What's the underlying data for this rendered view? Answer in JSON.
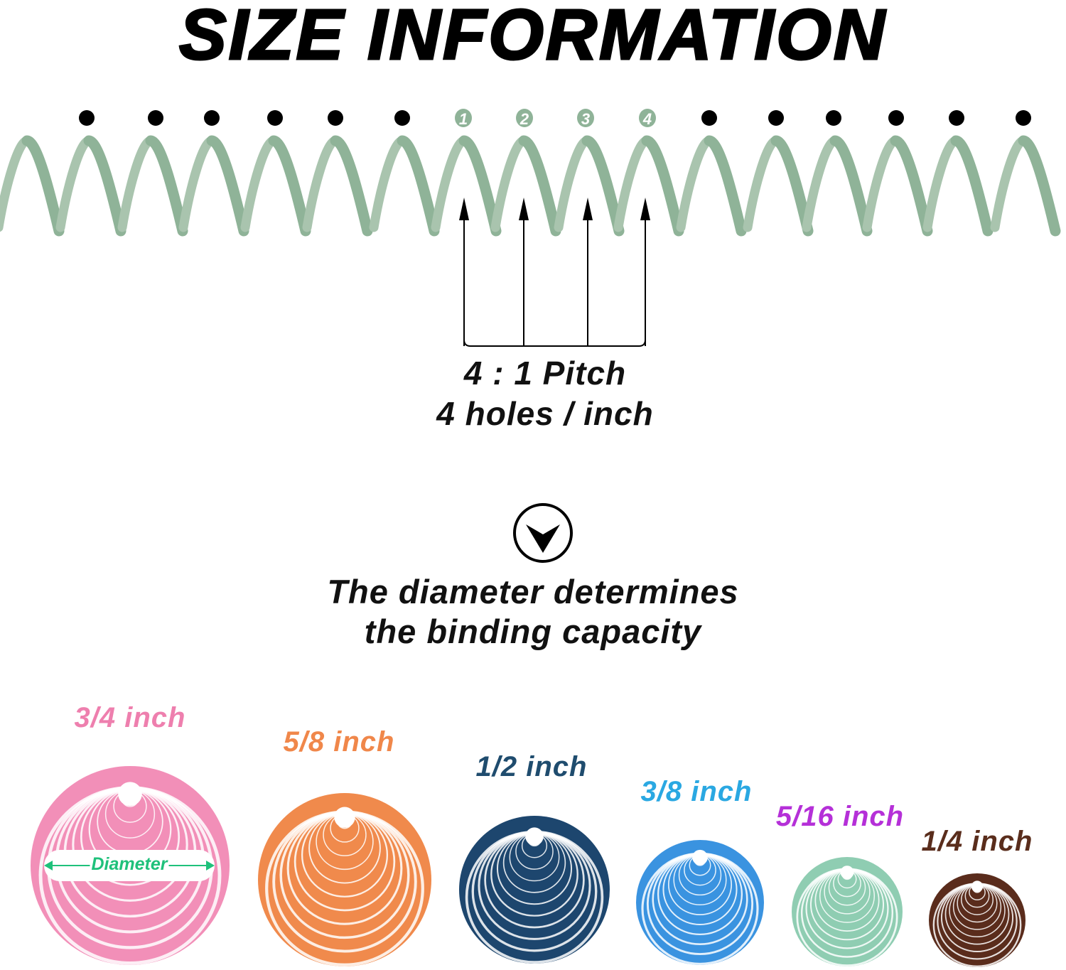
{
  "title": "SIZE INFORMATION",
  "spring": {
    "color": "#8fb398",
    "numbers": [
      "1",
      "2",
      "3",
      "4"
    ]
  },
  "pitch": {
    "line1": "4 : 1 Pitch",
    "line2": "4 holes / inch"
  },
  "arrow_icon": "chevron-down-circle-icon",
  "headline": {
    "line1": "The diameter determines",
    "line2": "the binding capacity"
  },
  "diameter_label": "Diameter",
  "diameter_color": "#1fc17b",
  "sizes": [
    {
      "label": "3/4 inch",
      "color": "#ee7fae",
      "coil": "#f28fb8"
    },
    {
      "label": "5/8 inch",
      "color": "#f0874a",
      "coil": "#f08a4c"
    },
    {
      "label": "1/2 inch",
      "color": "#1f4c6e",
      "coil": "#1d466e"
    },
    {
      "label": "3/8 inch",
      "color": "#2aa8e2",
      "coil": "#3a93e0"
    },
    {
      "label": "5/16 inch",
      "color": "#b530d8",
      "coil": "#8fcdb2"
    },
    {
      "label": "1/4 inch",
      "color": "#5a2d1c",
      "coil": "#5a2c1c"
    }
  ]
}
